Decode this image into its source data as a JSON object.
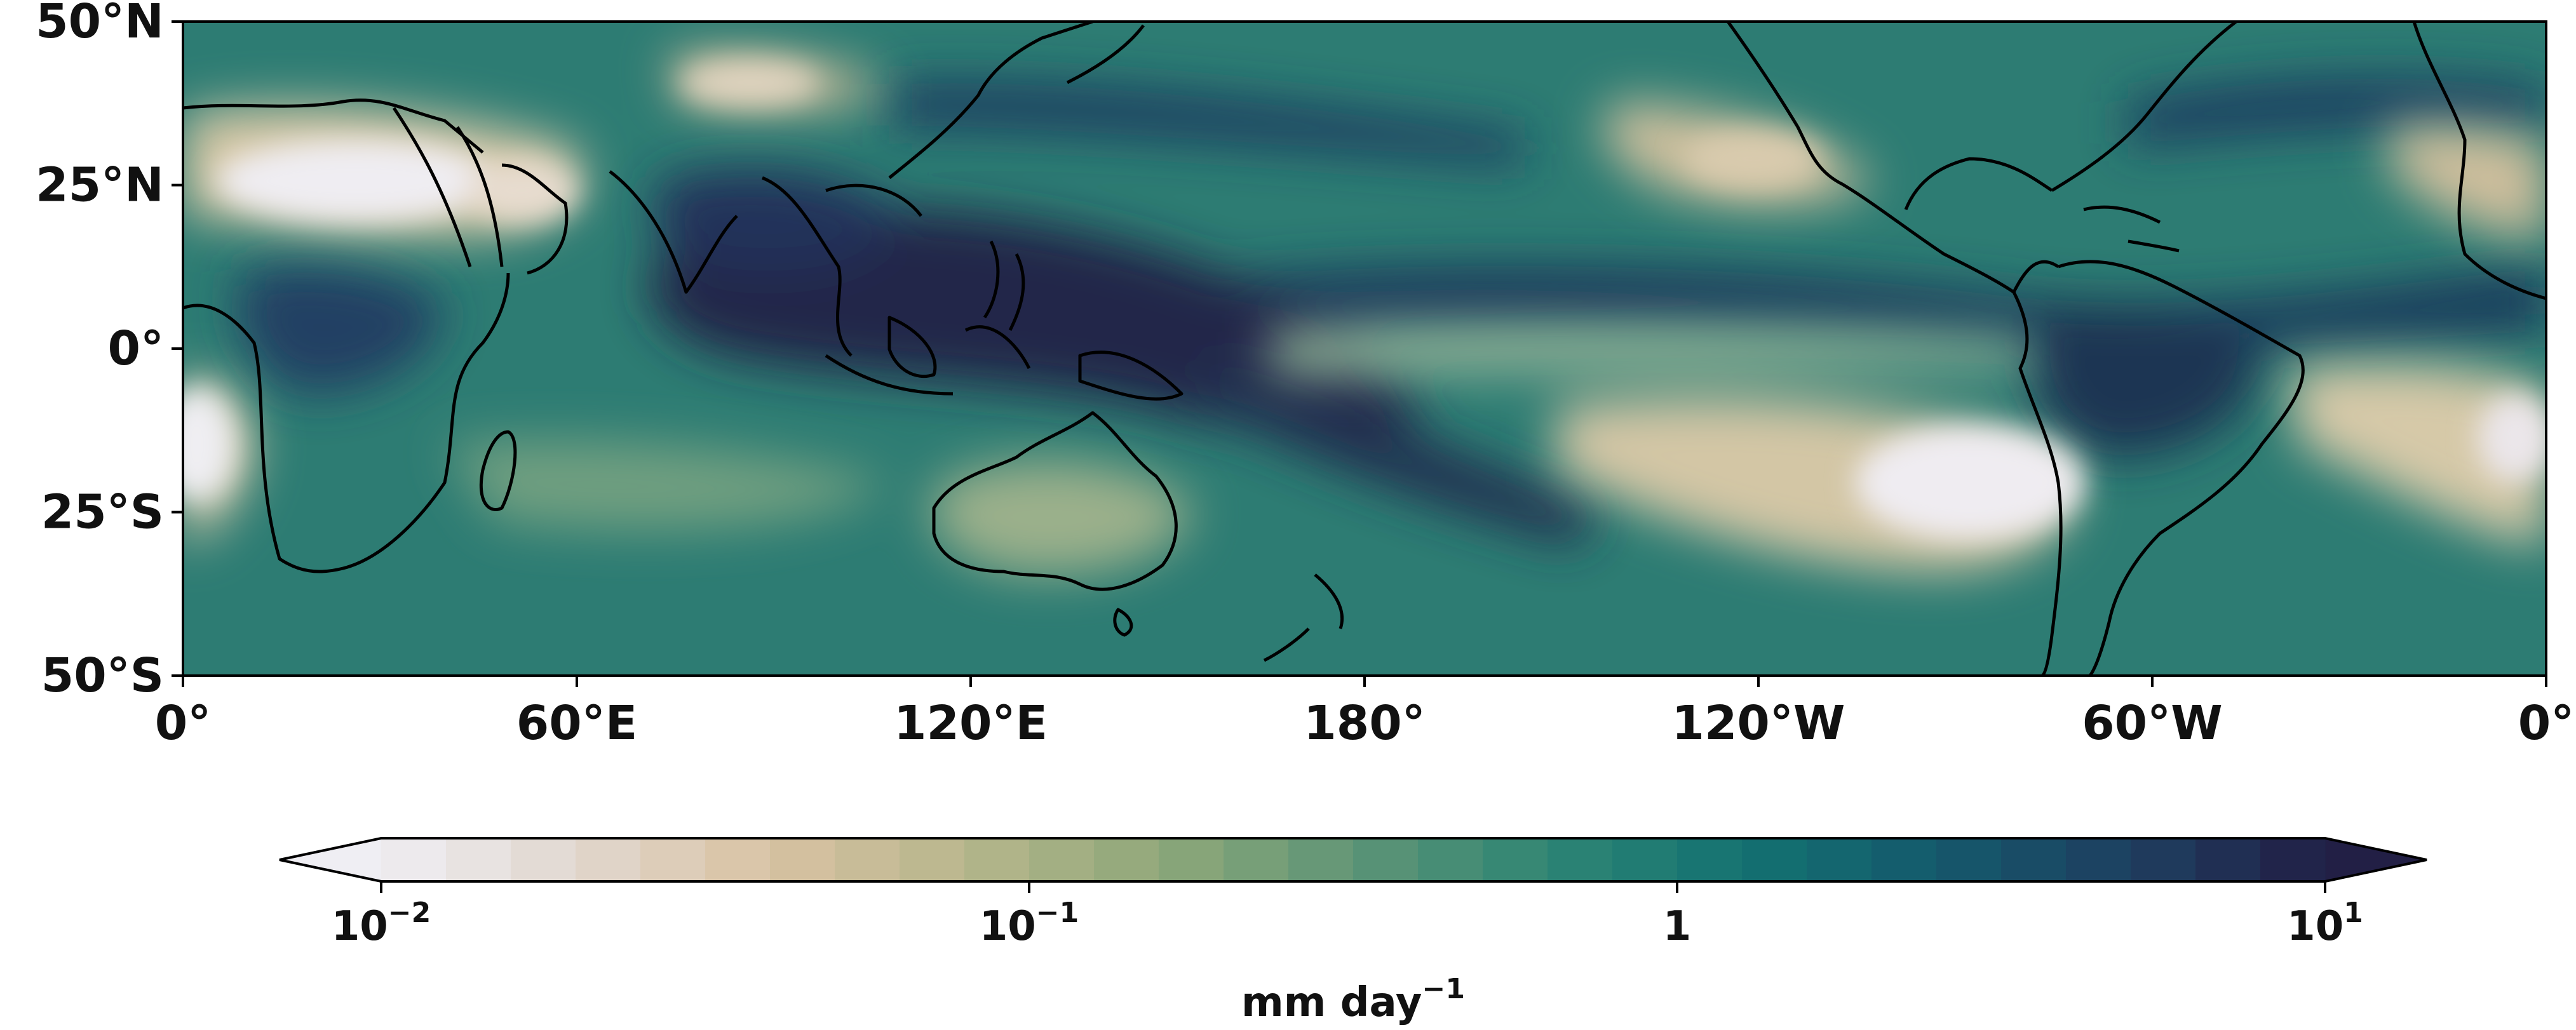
{
  "map": {
    "projection": "PlateCarree",
    "central_longitude": 180,
    "extent": {
      "lon_min": 0,
      "lon_max": 360,
      "lat_min": -50,
      "lat_max": 50
    },
    "field": "precipitation",
    "coastlines": true,
    "lat_ticks": [
      "50°N",
      "25°N",
      "0°",
      "25°S",
      "50°S"
    ],
    "lon_ticks": [
      "0°",
      "60°E",
      "120°E",
      "180°",
      "120°W",
      "60°W",
      "0°"
    ],
    "lat_values": [
      50,
      25,
      0,
      -25,
      -50
    ],
    "lon_values": [
      0,
      60,
      120,
      180,
      240,
      300,
      360
    ]
  },
  "colorbar": {
    "orientation": "horizontal",
    "scale": "log",
    "range": [
      0.01,
      10
    ],
    "extend": "both",
    "levels": 30,
    "unit_base": "mm day",
    "unit_exp": "−1",
    "ticks": [
      {
        "value": 0.01,
        "base": "10",
        "exp": "−2"
      },
      {
        "value": 0.1,
        "base": "10",
        "exp": "−1"
      },
      {
        "value": 1,
        "base": "1",
        "exp": ""
      },
      {
        "value": 10,
        "base": "10",
        "exp": "1"
      }
    ],
    "colormap": "tempo_r",
    "color_stops": [
      "#efeef3",
      "#e1d7cf",
      "#d8c2a3",
      "#b7b68c",
      "#8fa87a",
      "#5f9576",
      "#2f8574",
      "#137271",
      "#14596c",
      "#1e3f60",
      "#221f45"
    ]
  },
  "colors": {
    "desert": "#ece9ef",
    "dry": "#d5c7a6",
    "moderate": "#2e7f74",
    "wet": "#1d3a5a",
    "very_wet": "#21223f",
    "coastline": "#000000"
  }
}
